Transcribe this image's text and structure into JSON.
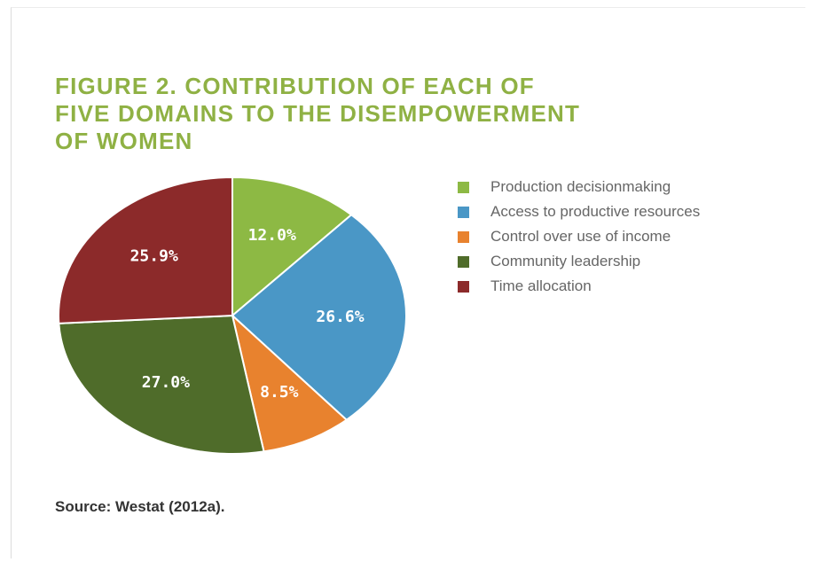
{
  "figure": {
    "title_lines": [
      "FIGURE 2. CONTRIBUTION OF EACH OF",
      "FIVE DOMAINS TO THE DISEMPOWERMENT",
      "OF WOMEN"
    ],
    "source": "Source: Westat (2012a)."
  },
  "colors": {
    "title": "#8fb144"
  },
  "chart_data": {
    "type": "pie",
    "title": "FIGURE 2. CONTRIBUTION OF EACH OF FIVE DOMAINS TO THE DISEMPOWERMENT OF WOMEN",
    "legend_position": "right",
    "slices": [
      {
        "label": "Production decisionmaking",
        "value": 12.0,
        "display": "12.0%",
        "color": "#8db944"
      },
      {
        "label": "Access to productive resources",
        "value": 26.6,
        "display": "26.6%",
        "color": "#4a97c6"
      },
      {
        "label": "Control over use of income",
        "value": 8.5,
        "display": "8.5%",
        "color": "#e8822e"
      },
      {
        "label": "Community leadership",
        "value": 27.0,
        "display": "27.0%",
        "color": "#4f6c2a"
      },
      {
        "label": "Time allocation",
        "value": 25.9,
        "display": "25.9%",
        "color": "#8c2a2a"
      }
    ]
  }
}
